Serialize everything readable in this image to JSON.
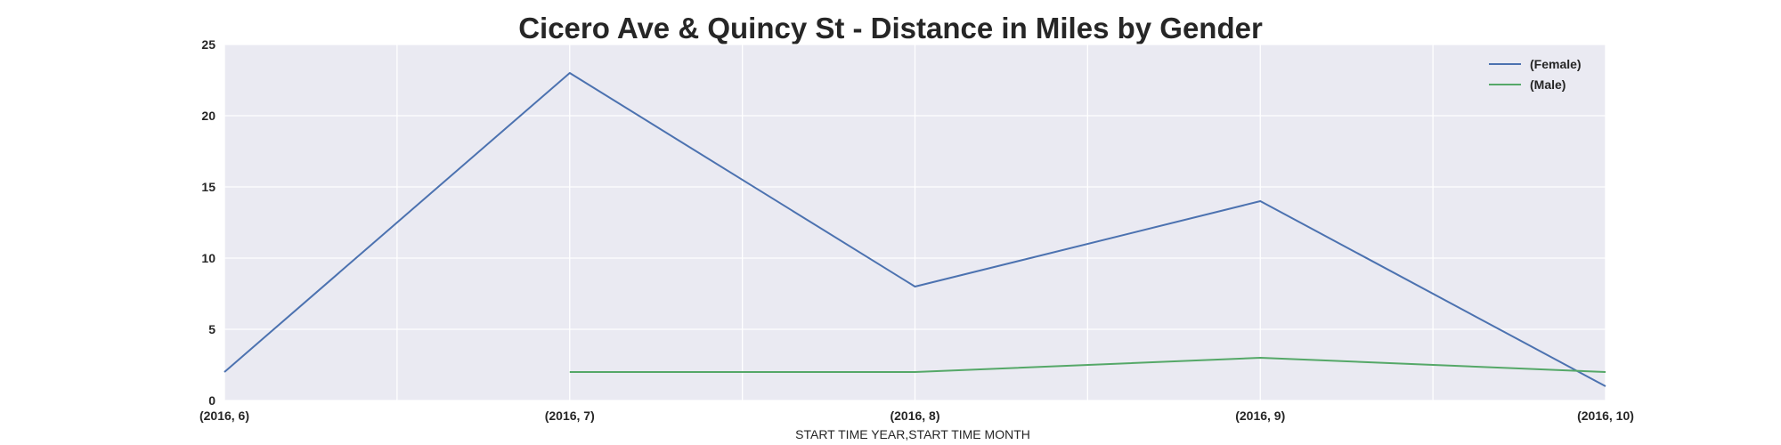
{
  "chart_data": {
    "type": "line",
    "title": "Cicero Ave & Quincy St - Distance in Miles by Gender",
    "xlabel": "START TIME YEAR,START TIME MONTH",
    "ylabel": "",
    "categories": [
      "(2016, 6)",
      "(2016, 7)",
      "(2016, 8)",
      "(2016, 9)",
      "(2016, 10)"
    ],
    "y_ticks": [
      0,
      5,
      10,
      15,
      20,
      25
    ],
    "ylim": [
      0,
      25
    ],
    "grid": true,
    "legend_position": "top-right",
    "series": [
      {
        "name": "(Female)",
        "color": "#4c72b0",
        "values": [
          2,
          23,
          8,
          14,
          1
        ]
      },
      {
        "name": "(Male)",
        "color": "#55a868",
        "values": [
          null,
          2,
          2,
          3,
          2
        ]
      }
    ],
    "colors": {
      "plot_background": "#eaeaf2",
      "grid": "#ffffff"
    }
  }
}
